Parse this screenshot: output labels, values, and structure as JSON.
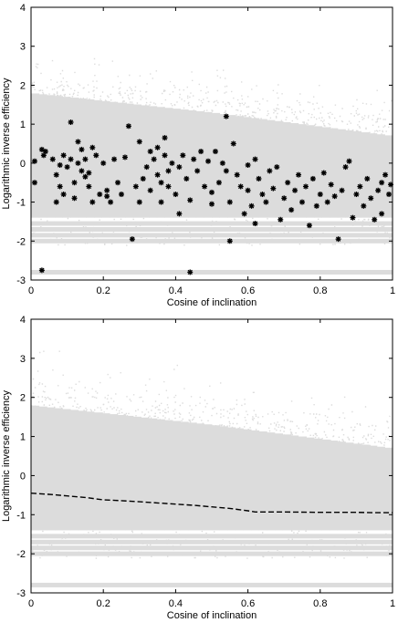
{
  "chart_data": [
    {
      "type": "scatter",
      "xlabel": "Cosine of inclination",
      "ylabel": "Logarithmic inverse efficiency",
      "xlim": [
        0,
        1
      ],
      "ylim": [
        -3,
        4
      ],
      "xticks": [
        "0",
        "0.2",
        "0.4",
        "0.6",
        "0.8",
        "1"
      ],
      "yticks": [
        "-3",
        "-2",
        "-1",
        "0",
        "1",
        "2",
        "3",
        "4"
      ],
      "colors": {
        "background_cloud": "#dcdcdc",
        "markers": "#000000"
      },
      "background": {
        "description_levels": [
          -1.55,
          -1.7,
          -1.85,
          -2.0,
          -2.8
        ],
        "upper_edge": [
          [
            0,
            1.8
          ],
          [
            0.5,
            1.3
          ],
          [
            1,
            0.7
          ]
        ]
      },
      "series": [
        {
          "marker": "star",
          "points": [
            [
              0.01,
              0.05
            ],
            [
              0.01,
              -0.5
            ],
            [
              0.03,
              0.35
            ],
            [
              0.035,
              0.2
            ],
            [
              0.04,
              0.3
            ],
            [
              0.03,
              -2.75
            ],
            [
              0.06,
              0.1
            ],
            [
              0.07,
              -0.3
            ],
            [
              0.08,
              -0.05
            ],
            [
              0.07,
              -1.0
            ],
            [
              0.08,
              -0.6
            ],
            [
              0.09,
              -0.8
            ],
            [
              0.09,
              0.2
            ],
            [
              0.1,
              -0.1
            ],
            [
              0.11,
              0.1
            ],
            [
              0.11,
              1.05
            ],
            [
              0.12,
              -0.5
            ],
            [
              0.12,
              -0.9
            ],
            [
              0.13,
              0.0
            ],
            [
              0.13,
              0.55
            ],
            [
              0.14,
              -0.2
            ],
            [
              0.14,
              0.35
            ],
            [
              0.15,
              0.1
            ],
            [
              0.15,
              -0.35
            ],
            [
              0.16,
              -0.6
            ],
            [
              0.16,
              -0.25
            ],
            [
              0.17,
              0.4
            ],
            [
              0.17,
              -1.0
            ],
            [
              0.18,
              0.2
            ],
            [
              0.19,
              -0.8
            ],
            [
              0.2,
              0.0
            ],
            [
              0.21,
              -0.85
            ],
            [
              0.21,
              -0.7
            ],
            [
              0.22,
              -1.0
            ],
            [
              0.23,
              0.1
            ],
            [
              0.24,
              -0.5
            ],
            [
              0.25,
              -0.8
            ],
            [
              0.26,
              0.15
            ],
            [
              0.27,
              0.95
            ],
            [
              0.28,
              -1.95
            ],
            [
              0.29,
              -0.6
            ],
            [
              0.3,
              0.55
            ],
            [
              0.3,
              -1.0
            ],
            [
              0.31,
              -0.4
            ],
            [
              0.32,
              -0.1
            ],
            [
              0.33,
              0.3
            ],
            [
              0.33,
              -0.7
            ],
            [
              0.34,
              0.1
            ],
            [
              0.35,
              -0.3
            ],
            [
              0.35,
              0.4
            ],
            [
              0.36,
              -0.5
            ],
            [
              0.36,
              -1.0
            ],
            [
              0.37,
              0.2
            ],
            [
              0.37,
              0.65
            ],
            [
              0.38,
              -0.2
            ],
            [
              0.38,
              -0.6
            ],
            [
              0.39,
              0.0
            ],
            [
              0.4,
              -0.8
            ],
            [
              0.41,
              -1.3
            ],
            [
              0.41,
              -0.1
            ],
            [
              0.42,
              0.2
            ],
            [
              0.43,
              -0.4
            ],
            [
              0.44,
              -0.95
            ],
            [
              0.44,
              -2.8
            ],
            [
              0.45,
              0.1
            ],
            [
              0.46,
              -0.2
            ],
            [
              0.47,
              0.3
            ],
            [
              0.48,
              -0.6
            ],
            [
              0.49,
              0.05
            ],
            [
              0.5,
              -0.75
            ],
            [
              0.5,
              -1.05
            ],
            [
              0.51,
              0.3
            ],
            [
              0.52,
              -0.5
            ],
            [
              0.53,
              0.0
            ],
            [
              0.54,
              1.2
            ],
            [
              0.54,
              -0.2
            ],
            [
              0.55,
              -2.0
            ],
            [
              0.55,
              -1.0
            ],
            [
              0.56,
              0.5
            ],
            [
              0.57,
              -0.3
            ],
            [
              0.58,
              -0.6
            ],
            [
              0.59,
              -1.3
            ],
            [
              0.6,
              -0.05
            ],
            [
              0.6,
              -0.7
            ],
            [
              0.61,
              -1.1
            ],
            [
              0.62,
              -1.55
            ],
            [
              0.62,
              0.1
            ],
            [
              0.63,
              -0.4
            ],
            [
              0.64,
              -0.8
            ],
            [
              0.65,
              -1.0
            ],
            [
              0.66,
              -0.2
            ],
            [
              0.67,
              -0.65
            ],
            [
              0.68,
              -0.1
            ],
            [
              0.69,
              -1.45
            ],
            [
              0.7,
              -0.9
            ],
            [
              0.71,
              -0.5
            ],
            [
              0.72,
              -1.2
            ],
            [
              0.73,
              -0.7
            ],
            [
              0.74,
              -0.3
            ],
            [
              0.75,
              -1.0
            ],
            [
              0.76,
              -0.6
            ],
            [
              0.77,
              -1.6
            ],
            [
              0.78,
              -0.4
            ],
            [
              0.79,
              -1.1
            ],
            [
              0.8,
              -0.8
            ],
            [
              0.81,
              -0.25
            ],
            [
              0.82,
              -1.0
            ],
            [
              0.83,
              -0.55
            ],
            [
              0.84,
              -0.85
            ],
            [
              0.85,
              -1.95
            ],
            [
              0.86,
              -0.7
            ],
            [
              0.87,
              -0.1
            ],
            [
              0.88,
              0.05
            ],
            [
              0.89,
              -1.4
            ],
            [
              0.9,
              -0.8
            ],
            [
              0.91,
              -0.6
            ],
            [
              0.92,
              -1.1
            ],
            [
              0.93,
              -0.4
            ],
            [
              0.94,
              -0.9
            ],
            [
              0.95,
              -1.45
            ],
            [
              0.96,
              -0.7
            ],
            [
              0.97,
              -1.3
            ],
            [
              0.97,
              -0.5
            ],
            [
              0.98,
              -0.3
            ],
            [
              0.99,
              -0.8
            ],
            [
              0.995,
              -0.55
            ]
          ]
        }
      ]
    },
    {
      "type": "scatter",
      "xlabel": "Cosine of inclination",
      "ylabel": "Logarithmic inverse efficiency",
      "xlim": [
        0,
        1
      ],
      "ylim": [
        -3,
        4
      ],
      "xticks": [
        "0",
        "0.2",
        "0.4",
        "0.6",
        "0.8",
        "1"
      ],
      "yticks": [
        "-3",
        "-2",
        "-1",
        "0",
        "1",
        "2",
        "3",
        "4"
      ],
      "colors": {
        "background_cloud": "#dcdcdc",
        "trend_line": "#000000"
      },
      "background": {
        "description_levels": [
          -1.55,
          -1.7,
          -1.85,
          -2.0,
          -2.8
        ],
        "upper_edge": [
          [
            0,
            1.8
          ],
          [
            0.5,
            1.3
          ],
          [
            1,
            0.7
          ]
        ]
      },
      "series": [
        {
          "style": "dashed-line",
          "points": [
            [
              0.0,
              -0.45
            ],
            [
              0.05,
              -0.48
            ],
            [
              0.1,
              -0.52
            ],
            [
              0.15,
              -0.56
            ],
            [
              0.2,
              -0.62
            ],
            [
              0.25,
              -0.64
            ],
            [
              0.3,
              -0.67
            ],
            [
              0.35,
              -0.7
            ],
            [
              0.4,
              -0.73
            ],
            [
              0.45,
              -0.76
            ],
            [
              0.5,
              -0.8
            ],
            [
              0.55,
              -0.84
            ],
            [
              0.6,
              -0.9
            ],
            [
              0.62,
              -0.93
            ],
            [
              0.7,
              -0.93
            ],
            [
              0.8,
              -0.94
            ],
            [
              0.9,
              -0.94
            ],
            [
              0.95,
              -0.95
            ],
            [
              1.0,
              -0.95
            ]
          ]
        }
      ]
    }
  ]
}
